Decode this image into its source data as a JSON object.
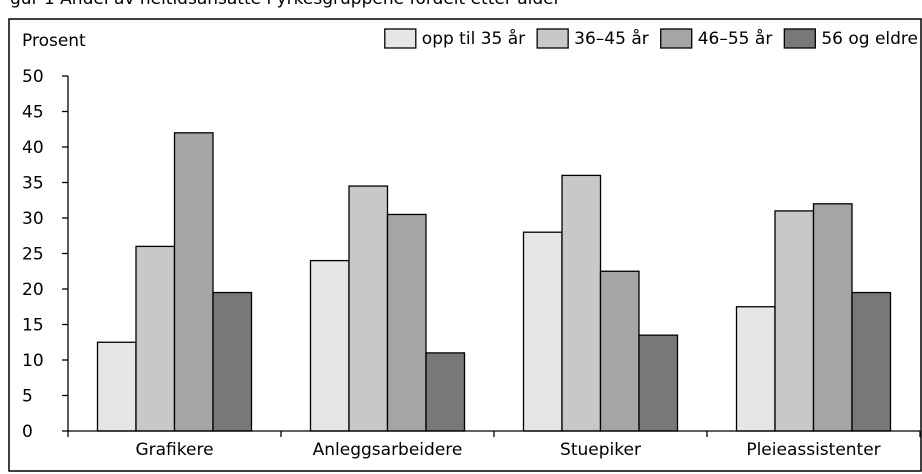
{
  "header_fragment": "gur 1 Andel av heltidsansatte i yrkesgruppene fordelt etter alder",
  "chart_data": {
    "type": "bar",
    "ylabel": "Prosent",
    "ylim": [
      0,
      50
    ],
    "yticks": [
      0,
      5,
      10,
      15,
      20,
      25,
      30,
      35,
      40,
      45,
      50
    ],
    "categories": [
      "Grafikere",
      "Anleggsarbeidere",
      "Stuepiker",
      "Pleieassistenter"
    ],
    "series": [
      {
        "name": "opp til 35 år",
        "color": "#e6e6e6",
        "values": [
          12.5,
          24,
          28,
          17.5
        ]
      },
      {
        "name": "36–45 år",
        "color": "#c8c8c8",
        "values": [
          26,
          34.5,
          36,
          31
        ]
      },
      {
        "name": "46–55 år",
        "color": "#a5a5a5",
        "values": [
          42,
          30.5,
          22.5,
          32
        ]
      },
      {
        "name": "56 og eldre",
        "color": "#787878",
        "values": [
          19.5,
          11,
          13.5,
          19.5
        ]
      }
    ],
    "grid": false,
    "legend_position": "top-right"
  }
}
